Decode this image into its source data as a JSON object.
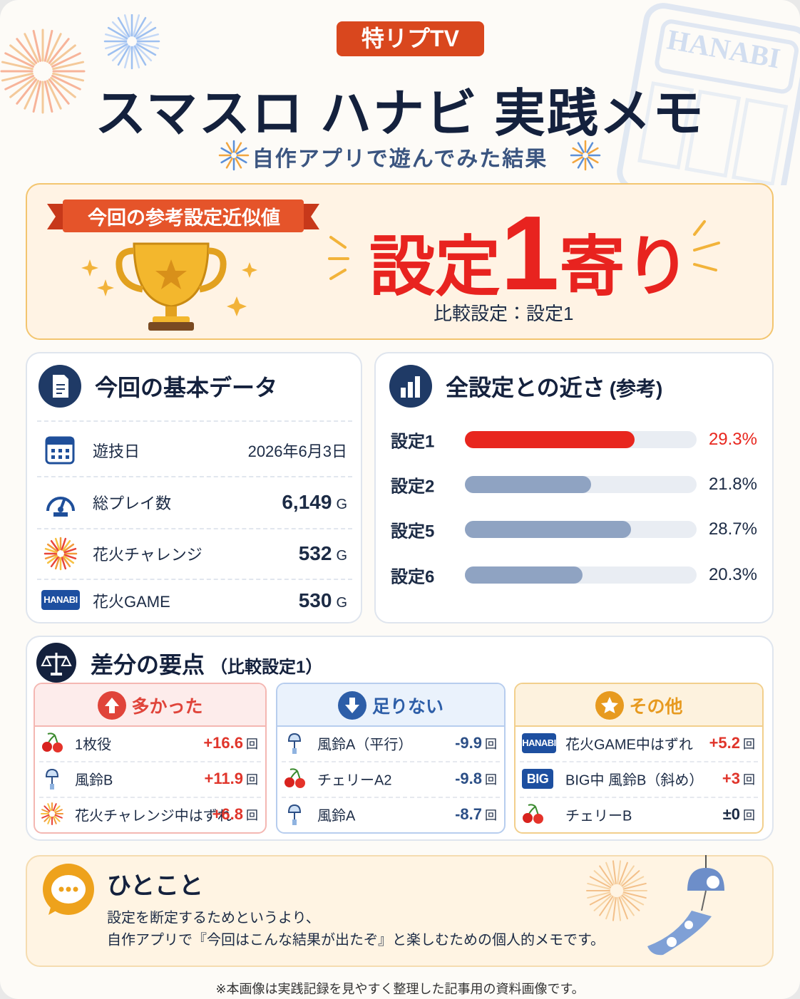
{
  "header": {
    "badge": "特リプTV",
    "title": "スマスロ ハナビ 実践メモ",
    "subtitle": "自作アプリで遊んでみた結果",
    "watermark": "HANABI"
  },
  "result": {
    "ribbon": "今回の参考設定近似値",
    "verdict": [
      "設定",
      "1",
      "寄り"
    ],
    "comparison": "比較設定：設定1"
  },
  "basic": {
    "title": "今回の基本データ",
    "rows": [
      {
        "label": "遊技日",
        "value": "2026年6月3日"
      },
      {
        "label": "総プレイ数",
        "value": "6,149",
        "unit": "G"
      },
      {
        "label": "花火チャレンジ",
        "value": "532",
        "unit": "G"
      },
      {
        "badge": "HANABI",
        "label": "花火GAME",
        "value": "530",
        "unit": "G"
      }
    ]
  },
  "closeness": {
    "title": "全設定との近さ",
    "note": "(参考)",
    "categories": [
      "設定1",
      "設定2",
      "設定5",
      "設定6"
    ],
    "values": [
      29.3,
      21.8,
      28.7,
      20.3
    ],
    "value_labels": [
      "29.3%",
      "21.8%",
      "28.7%",
      "20.3%"
    ],
    "colors": [
      "#e8261e",
      "#8fa3c2",
      "#8fa3c2",
      "#8fa3c2"
    ],
    "label_colors": [
      "#e8261e",
      "#1c2b45",
      "#1c2b45",
      "#1c2b45"
    ],
    "xlim": [
      0,
      40
    ]
  },
  "diff": {
    "title": "差分の要点",
    "note": "（比較設定1）",
    "columns": [
      {
        "title": "多かった",
        "color": "#e0443a",
        "items": [
          {
            "label": "1枚役",
            "value": "+16.6",
            "unit": "回",
            "color": "#e0352b"
          },
          {
            "label": "風鈴B",
            "value": "+11.9",
            "unit": "回",
            "color": "#e0352b"
          },
          {
            "label": "花火チャレンジ中はずれ",
            "value": "+6.8",
            "unit": "回",
            "color": "#e0352b"
          }
        ]
      },
      {
        "title": "足りない",
        "color": "#2d5ea8",
        "items": [
          {
            "label": "風鈴A（平行）",
            "value": "-9.9",
            "unit": "回",
            "color": "#2c4f86"
          },
          {
            "label": "チェリーA2",
            "value": "-9.8",
            "unit": "回",
            "color": "#2c4f86"
          },
          {
            "label": "風鈴A",
            "value": "-8.7",
            "unit": "回",
            "color": "#2c4f86"
          }
        ]
      },
      {
        "title": "その他",
        "color": "#e79a1f",
        "items": [
          {
            "badge": "HANABI",
            "label": "花火GAME中はずれ",
            "value": "+5.2",
            "unit": "回",
            "color": "#e0352b"
          },
          {
            "badge": "BIG",
            "label": "BIG中 風鈴B（斜め）",
            "value": "+3",
            "unit": "回",
            "color": "#e0352b"
          },
          {
            "label": "チェリーB",
            "value": "±0",
            "unit": "回",
            "color": "#1c2b45"
          }
        ]
      }
    ]
  },
  "comment": {
    "title": "ひとこと",
    "lines": [
      "設定を断定するためというより、",
      "自作アプリで『今回はこんな結果が出たぞ』と楽しむための個人的メモです。"
    ]
  },
  "footer": "※本画像は実践記録を見やすく整理した記事用の資料画像です。"
}
